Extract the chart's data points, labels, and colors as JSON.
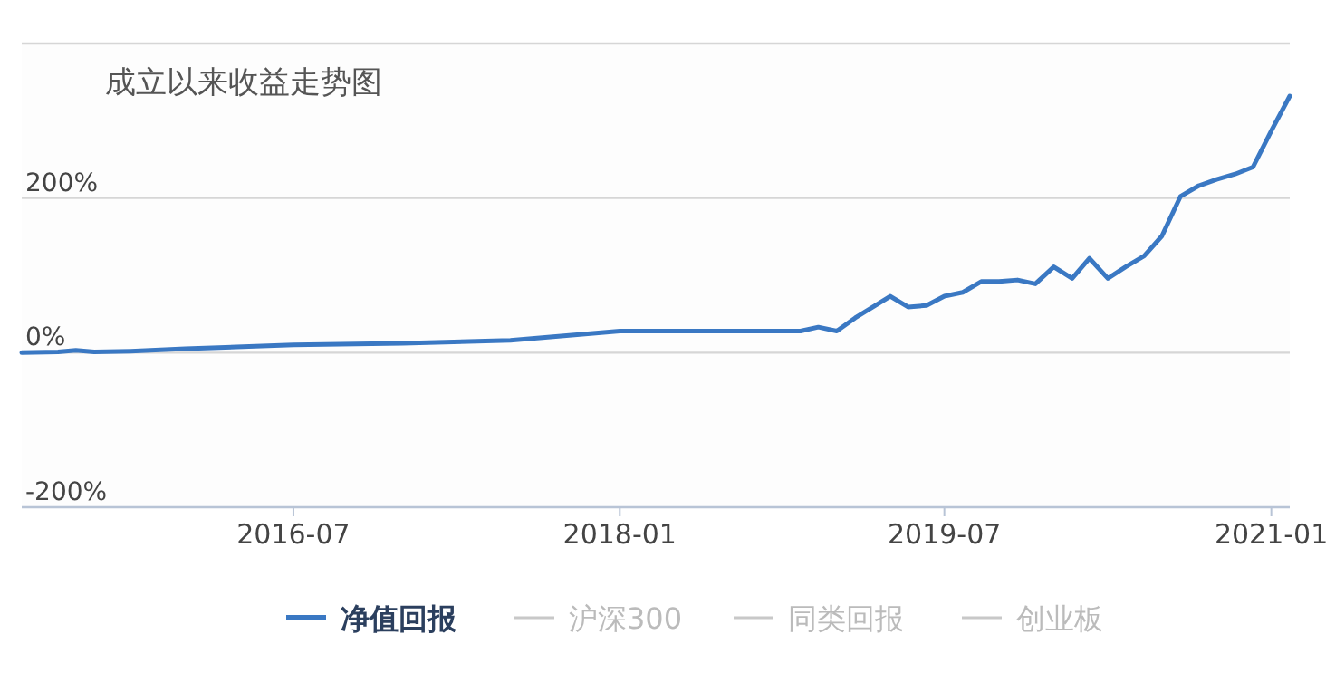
{
  "chart_data": {
    "type": "line",
    "title": "成立以来收益走势图",
    "x": [
      "2015-04",
      "2015-06",
      "2015-07",
      "2015-08",
      "2015-10",
      "2016-01",
      "2016-07",
      "2017-01",
      "2017-07",
      "2018-01",
      "2018-07",
      "2018-11",
      "2018-12",
      "2019-01",
      "2019-02",
      "2019-04",
      "2019-05",
      "2019-06",
      "2019-07",
      "2019-08",
      "2019-09",
      "2019-10",
      "2019-11",
      "2019-12",
      "2020-01",
      "2020-02",
      "2020-03",
      "2020-04",
      "2020-05",
      "2020-06",
      "2020-07",
      "2020-08",
      "2020-09",
      "2020-10",
      "2020-11",
      "2020-12",
      "2021-01",
      "2021-02"
    ],
    "series": [
      {
        "name": "净值回报",
        "color": "#3a78c3",
        "values": [
          0,
          1,
          3,
          1,
          2,
          5,
          10,
          12,
          16,
          28,
          28,
          28,
          33,
          28,
          45,
          73,
          59,
          61,
          73,
          78,
          92,
          92,
          94,
          89,
          111,
          96,
          122,
          96,
          111,
          125,
          151,
          202,
          216,
          224,
          231,
          240,
          287,
          332
        ]
      },
      {
        "name": "沪深300",
        "color": "#c8c8c8",
        "values": [
          null,
          null,
          null,
          null,
          null,
          null,
          null,
          null,
          null,
          null,
          null,
          null,
          null,
          null,
          null,
          null,
          null,
          null,
          null,
          null,
          null,
          null,
          null,
          null,
          null,
          null,
          null,
          null,
          null,
          null,
          null,
          null,
          null,
          null,
          null,
          null,
          null,
          null
        ]
      },
      {
        "name": "同类回报",
        "color": "#c8c8c8",
        "values": [
          null,
          null,
          null,
          null,
          null,
          null,
          null,
          null,
          null,
          null,
          null,
          null,
          null,
          null,
          null,
          null,
          null,
          null,
          null,
          null,
          null,
          null,
          null,
          null,
          null,
          null,
          null,
          null,
          null,
          null,
          null,
          null,
          null,
          null,
          null,
          null,
          null,
          null
        ]
      },
      {
        "name": "创业板",
        "color": "#c8c8c8",
        "values": [
          null,
          null,
          null,
          null,
          null,
          null,
          null,
          null,
          null,
          null,
          null,
          null,
          null,
          null,
          null,
          null,
          null,
          null,
          null,
          null,
          null,
          null,
          null,
          null,
          null,
          null,
          null,
          null,
          null,
          null,
          null,
          null,
          null,
          null,
          null,
          null,
          null,
          null
        ]
      }
    ],
    "xlim": [
      "2015-04",
      "2021-02"
    ],
    "xticks": [
      "2016-07",
      "2018-01",
      "2019-07",
      "2021-01"
    ],
    "ylim": [
      -200,
      400
    ],
    "yticks": [
      {
        "value": -200,
        "label": "-200%"
      },
      {
        "value": 0,
        "label": "0%"
      },
      {
        "value": 200,
        "label": "200%"
      },
      {
        "value": 400,
        "label": null
      }
    ],
    "grid": "y",
    "legend": "bottom",
    "marker": "none",
    "line_style": "solid"
  }
}
